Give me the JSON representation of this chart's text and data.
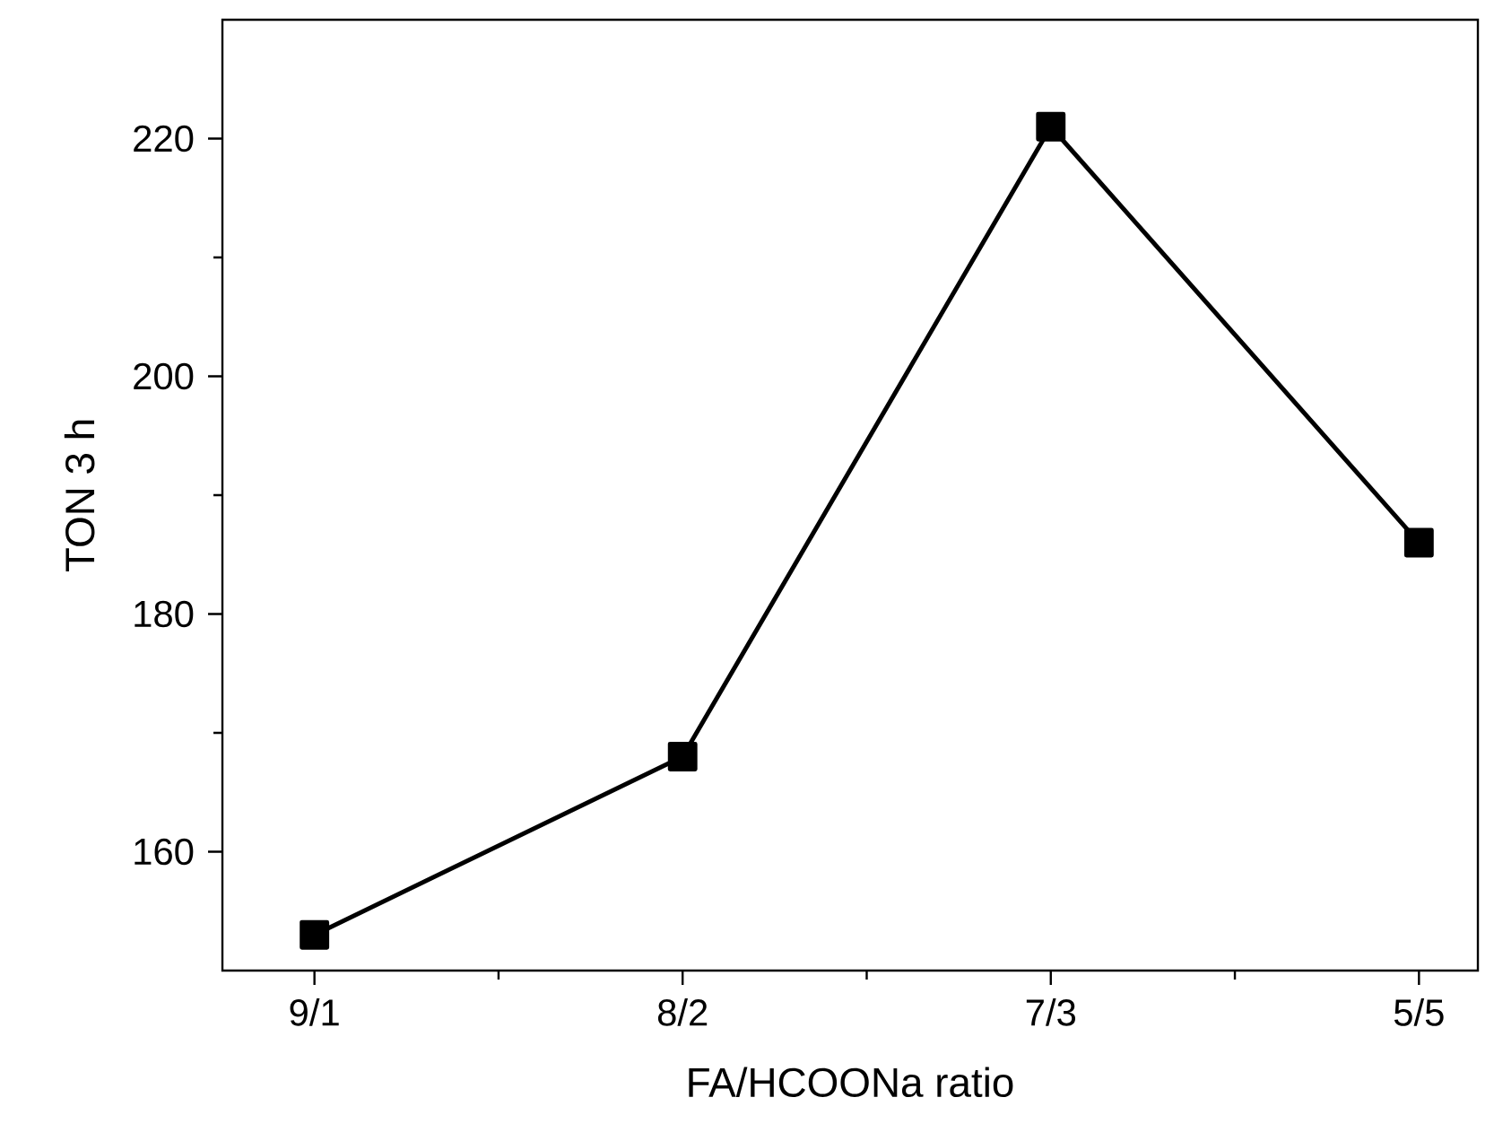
{
  "chart_data": {
    "type": "line",
    "xlabel": "FA/HCOONa ratio",
    "ylabel": "TON 3 h",
    "categories": [
      "9/1",
      "8/2",
      "7/3",
      "5/5"
    ],
    "series": [
      {
        "color": "#000000",
        "values": [
          153,
          168,
          221,
          186
        ]
      }
    ],
    "ylim": [
      150,
      230
    ],
    "yticks": [
      160,
      180,
      200,
      220
    ],
    "marker": "square",
    "line_style": "solid",
    "grid": false
  }
}
